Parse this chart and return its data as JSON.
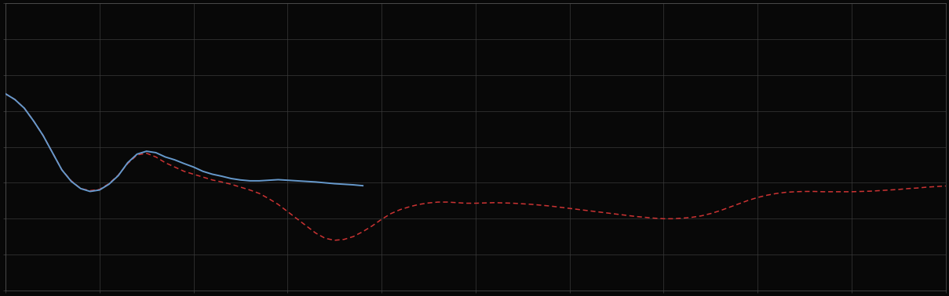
{
  "background_color": "#080808",
  "plot_bg_color": "#080808",
  "grid_color": "#3a3a3a",
  "blue_line_color": "#6699cc",
  "red_line_color": "#cc3333",
  "blue_linewidth": 1.4,
  "red_linewidth": 1.1,
  "figsize": [
    12.09,
    3.78
  ],
  "dpi": 100,
  "xlim": [
    0,
    100
  ],
  "ylim": [
    0.0,
    10.0
  ],
  "nx_grid": 10,
  "ny_grid": 8,
  "blue_x": [
    0,
    1,
    2,
    3,
    4,
    5,
    6,
    7,
    8,
    9,
    10,
    11,
    12,
    13,
    14,
    15,
    16,
    17,
    18,
    19,
    20,
    21,
    22,
    23,
    24,
    25,
    26,
    27,
    28,
    29,
    30,
    31,
    32,
    33,
    34,
    35,
    36,
    37,
    38
  ],
  "blue_y": [
    6.85,
    6.65,
    6.35,
    5.9,
    5.4,
    4.8,
    4.2,
    3.8,
    3.55,
    3.45,
    3.5,
    3.7,
    4.0,
    4.45,
    4.75,
    4.85,
    4.8,
    4.65,
    4.55,
    4.42,
    4.3,
    4.15,
    4.05,
    3.98,
    3.9,
    3.85,
    3.82,
    3.82,
    3.84,
    3.86,
    3.84,
    3.82,
    3.8,
    3.78,
    3.75,
    3.72,
    3.7,
    3.68,
    3.65
  ],
  "red_x": [
    0,
    1,
    2,
    3,
    4,
    5,
    6,
    7,
    8,
    9,
    10,
    11,
    12,
    13,
    14,
    15,
    16,
    17,
    18,
    19,
    20,
    21,
    22,
    23,
    24,
    25,
    26,
    27,
    28,
    29,
    30,
    31,
    32,
    33,
    34,
    35,
    36,
    37,
    38,
    39,
    40,
    41,
    42,
    43,
    44,
    45,
    46,
    47,
    48,
    49,
    50,
    51,
    52,
    53,
    54,
    55,
    56,
    57,
    58,
    59,
    60,
    61,
    62,
    63,
    64,
    65,
    66,
    67,
    68,
    69,
    70,
    71,
    72,
    73,
    74,
    75,
    76,
    77,
    78,
    79,
    80,
    81,
    82,
    83,
    84,
    85,
    86,
    87,
    88,
    89,
    90,
    91,
    92,
    93,
    94,
    95,
    96,
    97,
    98,
    99,
    100
  ],
  "red_y": [
    6.85,
    6.65,
    6.35,
    5.9,
    5.4,
    4.8,
    4.2,
    3.82,
    3.55,
    3.48,
    3.52,
    3.72,
    4.02,
    4.42,
    4.72,
    4.78,
    4.65,
    4.45,
    4.3,
    4.15,
    4.05,
    3.95,
    3.85,
    3.78,
    3.7,
    3.6,
    3.5,
    3.38,
    3.2,
    3.0,
    2.75,
    2.5,
    2.25,
    2.0,
    1.82,
    1.75,
    1.78,
    1.88,
    2.05,
    2.25,
    2.48,
    2.68,
    2.82,
    2.92,
    3.0,
    3.05,
    3.08,
    3.08,
    3.06,
    3.04,
    3.04,
    3.05,
    3.06,
    3.05,
    3.04,
    3.02,
    3.0,
    2.97,
    2.94,
    2.9,
    2.86,
    2.82,
    2.78,
    2.74,
    2.7,
    2.66,
    2.62,
    2.58,
    2.55,
    2.52,
    2.5,
    2.5,
    2.52,
    2.55,
    2.6,
    2.68,
    2.78,
    2.9,
    3.02,
    3.14,
    3.24,
    3.32,
    3.38,
    3.42,
    3.44,
    3.45,
    3.45,
    3.44,
    3.44,
    3.44,
    3.44,
    3.45,
    3.46,
    3.48,
    3.5,
    3.52,
    3.55,
    3.57,
    3.6,
    3.62,
    3.64
  ]
}
